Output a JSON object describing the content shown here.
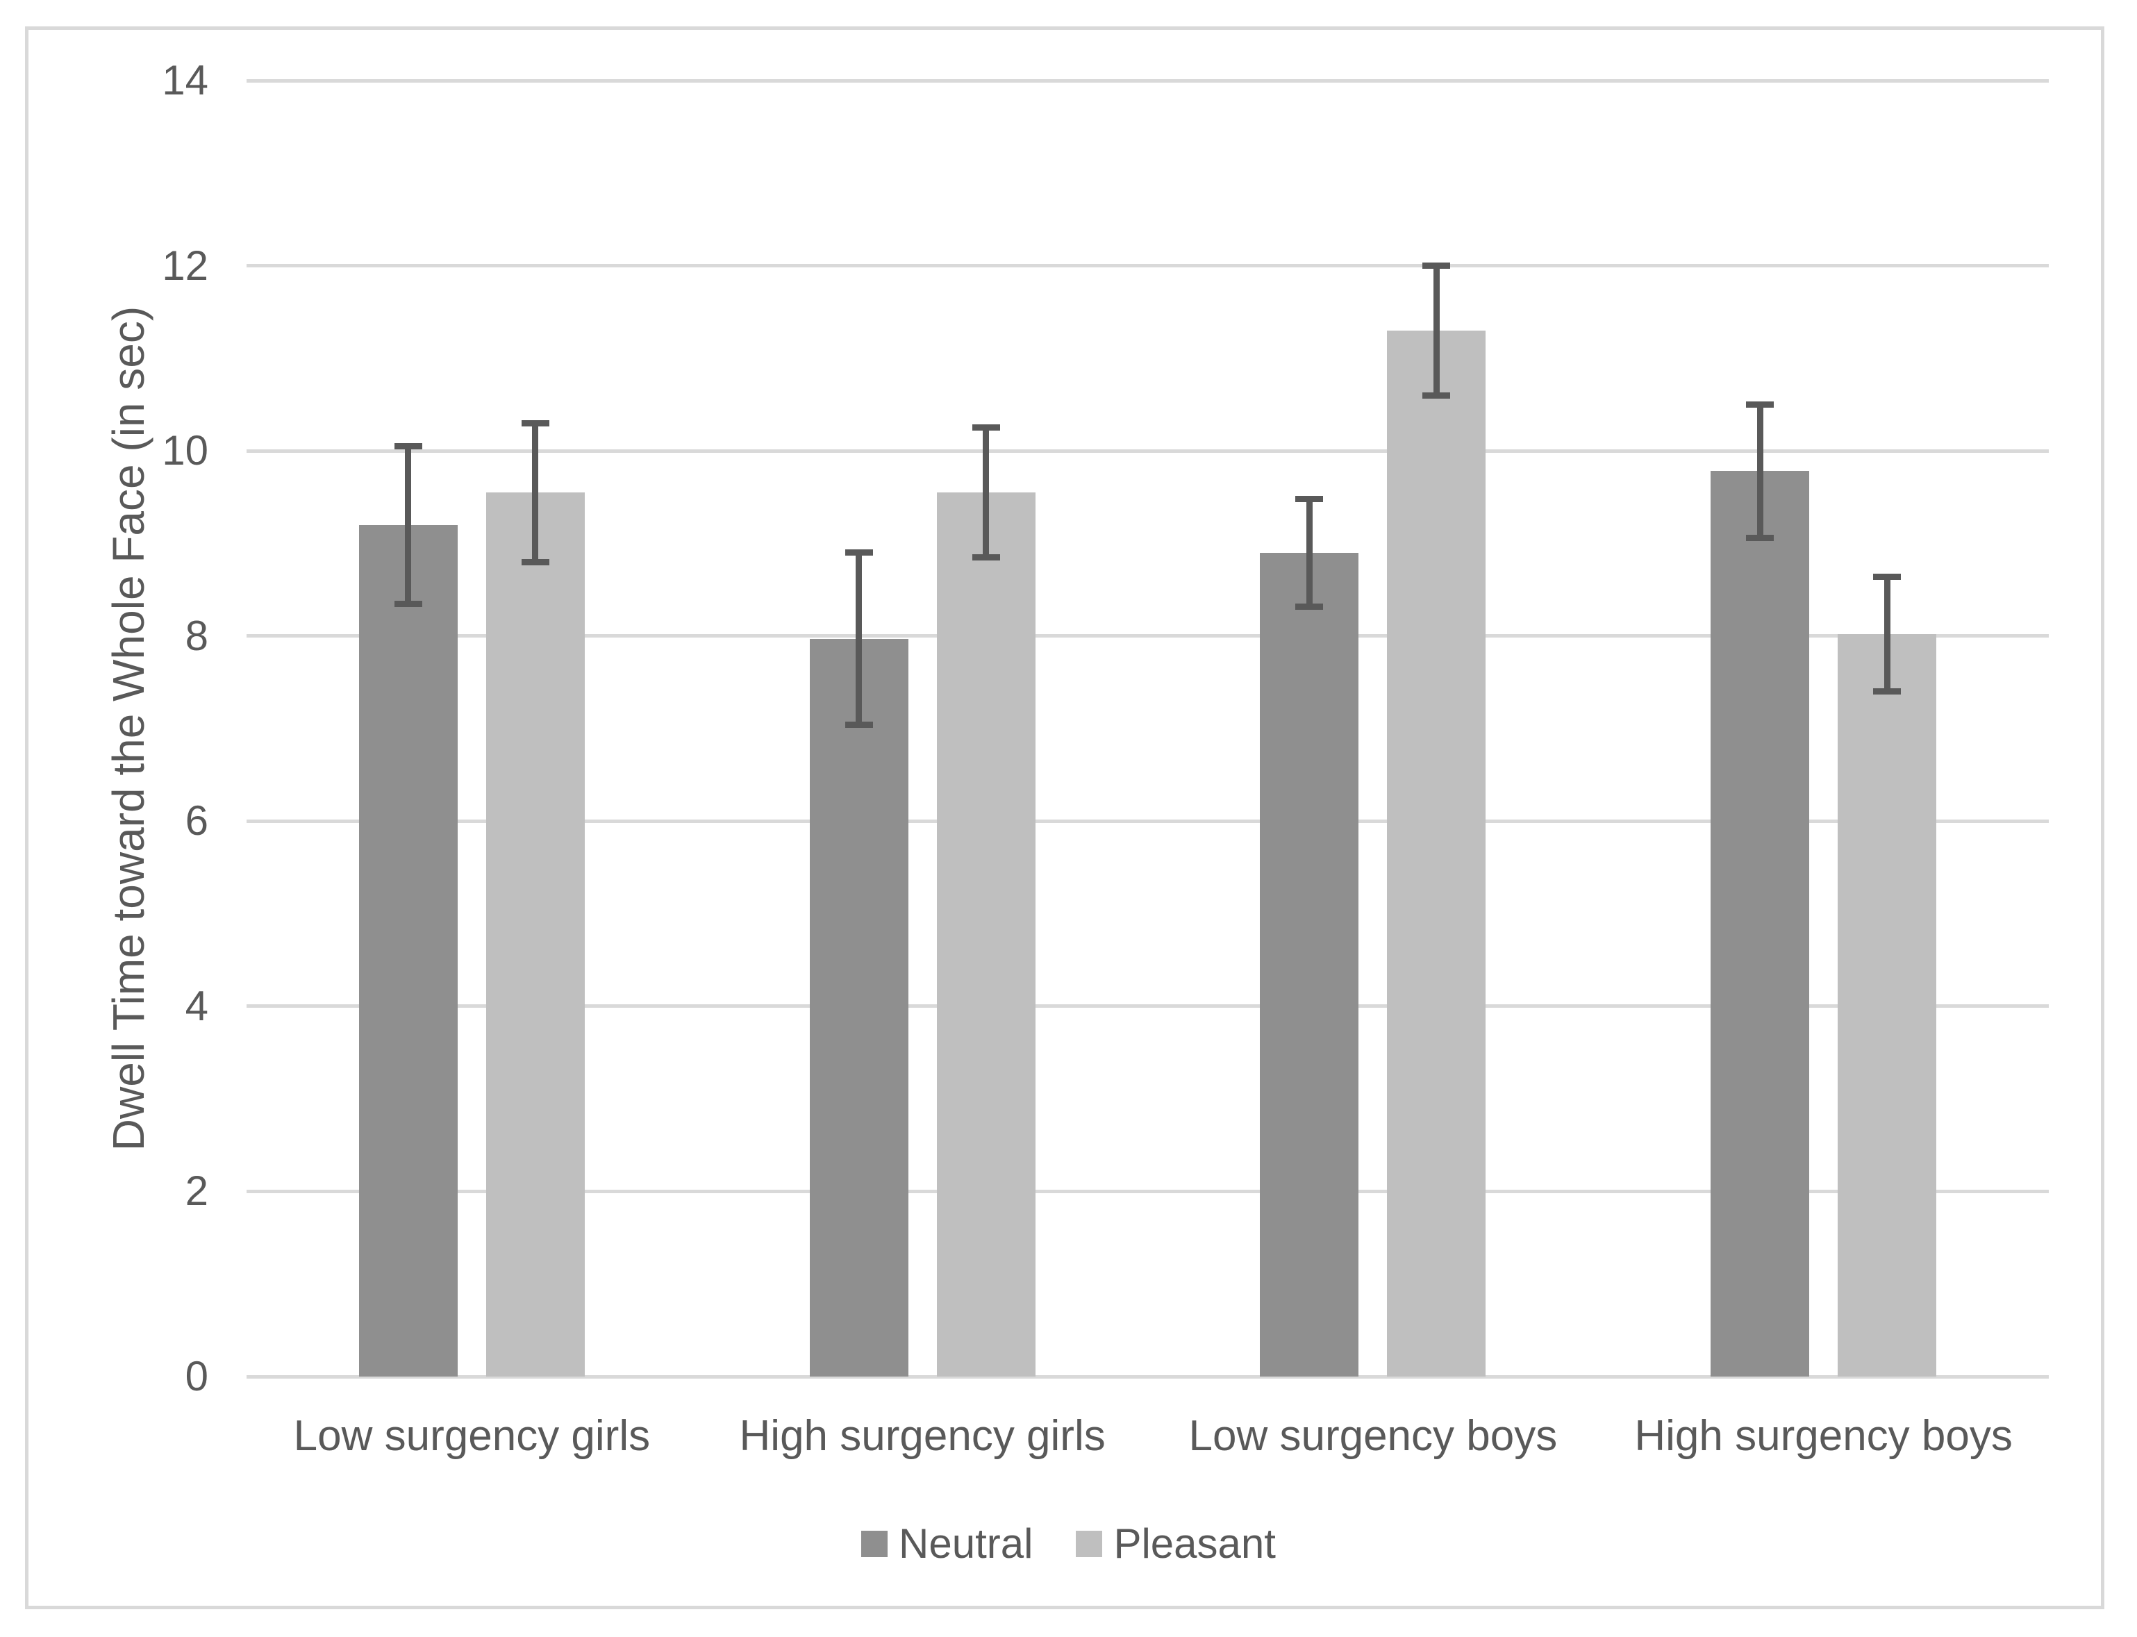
{
  "chart_data": {
    "type": "bar",
    "title": "",
    "xlabel": "",
    "ylabel": "Dwell Time toward the Whole Face (in sec)",
    "ylim": [
      0,
      14
    ],
    "yticks": [
      0,
      2,
      4,
      6,
      8,
      10,
      12,
      14
    ],
    "grid": true,
    "legend_position": "bottom",
    "categories": [
      "Low surgency girls",
      "High surgency girls",
      "Low surgency boys",
      "High surgency boys"
    ],
    "series": [
      {
        "name": "Neutral",
        "color": "#8f8f8f",
        "values": [
          9.2,
          7.97,
          8.9,
          9.78
        ],
        "errors": [
          0.85,
          0.93,
          0.58,
          0.72
        ]
      },
      {
        "name": "Pleasant",
        "color": "#bfbfbf",
        "values": [
          9.55,
          9.55,
          11.3,
          8.02
        ],
        "errors": [
          0.75,
          0.7,
          0.7,
          0.62
        ]
      }
    ],
    "error_bar_color": "#595959",
    "gridline_color": "#d9d9d9",
    "axis_line_color": "#d9d9d9",
    "frame_border_color": "#d9d9d9",
    "text_color": "#595959"
  }
}
